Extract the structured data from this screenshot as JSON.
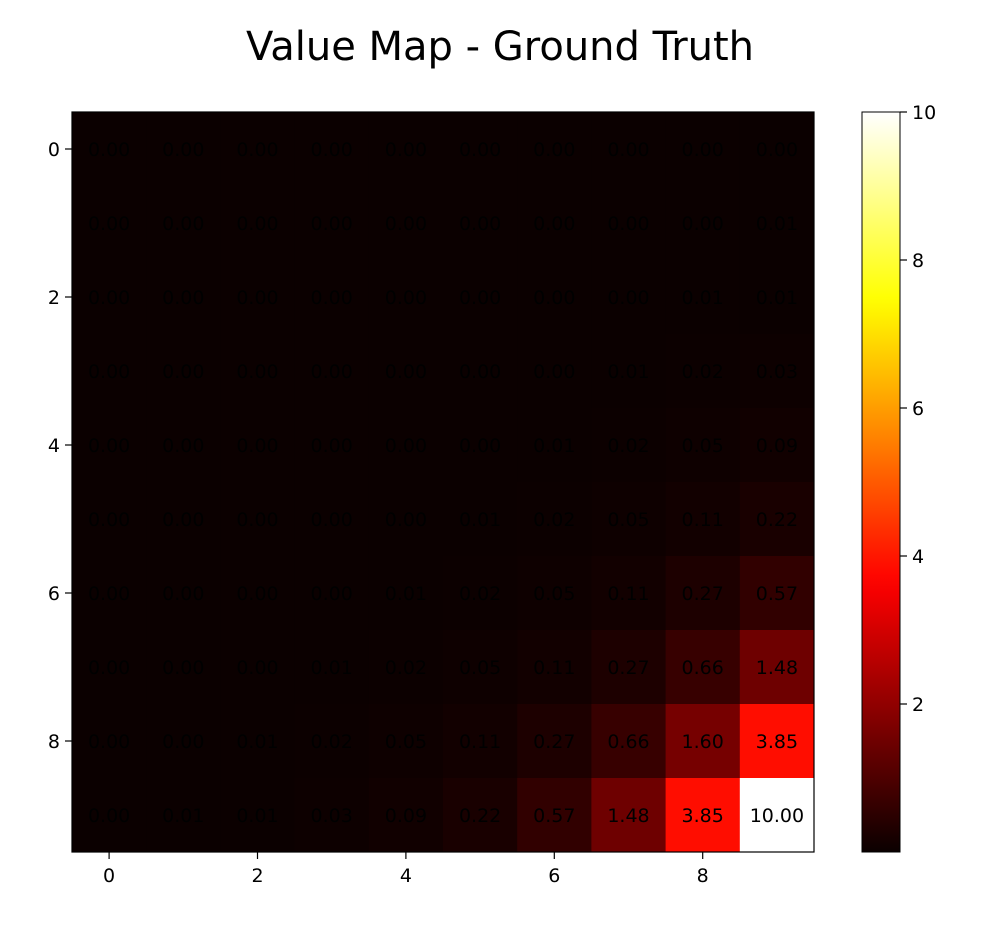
{
  "chart_data": {
    "type": "heatmap",
    "title": "Value Map - Ground Truth",
    "xlabel": "",
    "ylabel": "",
    "colormap": "hot",
    "vmin": 0,
    "vmax": 10,
    "x_ticks": [
      "0",
      "2",
      "4",
      "6",
      "8"
    ],
    "y_ticks": [
      "0",
      "2",
      "4",
      "6",
      "8"
    ],
    "colorbar_ticks": [
      "2",
      "4",
      "6",
      "8",
      "10"
    ],
    "grid": false,
    "values": [
      [
        0.0,
        0.0,
        0.0,
        0.0,
        0.0,
        0.0,
        0.0,
        0.0,
        0.0,
        0.0
      ],
      [
        0.0,
        0.0,
        0.0,
        0.0,
        0.0,
        0.0,
        0.0,
        0.0,
        0.0,
        0.01
      ],
      [
        0.0,
        0.0,
        0.0,
        0.0,
        0.0,
        0.0,
        0.0,
        0.0,
        0.01,
        0.01
      ],
      [
        0.0,
        0.0,
        0.0,
        0.0,
        0.0,
        0.0,
        0.0,
        0.01,
        0.02,
        0.03
      ],
      [
        0.0,
        0.0,
        0.0,
        0.0,
        0.0,
        0.0,
        0.01,
        0.02,
        0.05,
        0.09
      ],
      [
        0.0,
        0.0,
        0.0,
        0.0,
        0.0,
        0.01,
        0.02,
        0.05,
        0.11,
        0.22
      ],
      [
        0.0,
        0.0,
        0.0,
        0.0,
        0.01,
        0.02,
        0.05,
        0.11,
        0.27,
        0.57
      ],
      [
        0.0,
        0.0,
        0.0,
        0.01,
        0.02,
        0.05,
        0.11,
        0.27,
        0.66,
        1.48
      ],
      [
        0.0,
        0.0,
        0.01,
        0.02,
        0.05,
        0.11,
        0.27,
        0.66,
        1.6,
        3.85
      ],
      [
        0.0,
        0.01,
        0.01,
        0.03,
        0.09,
        0.22,
        0.57,
        1.48,
        3.85,
        10.0
      ]
    ]
  }
}
